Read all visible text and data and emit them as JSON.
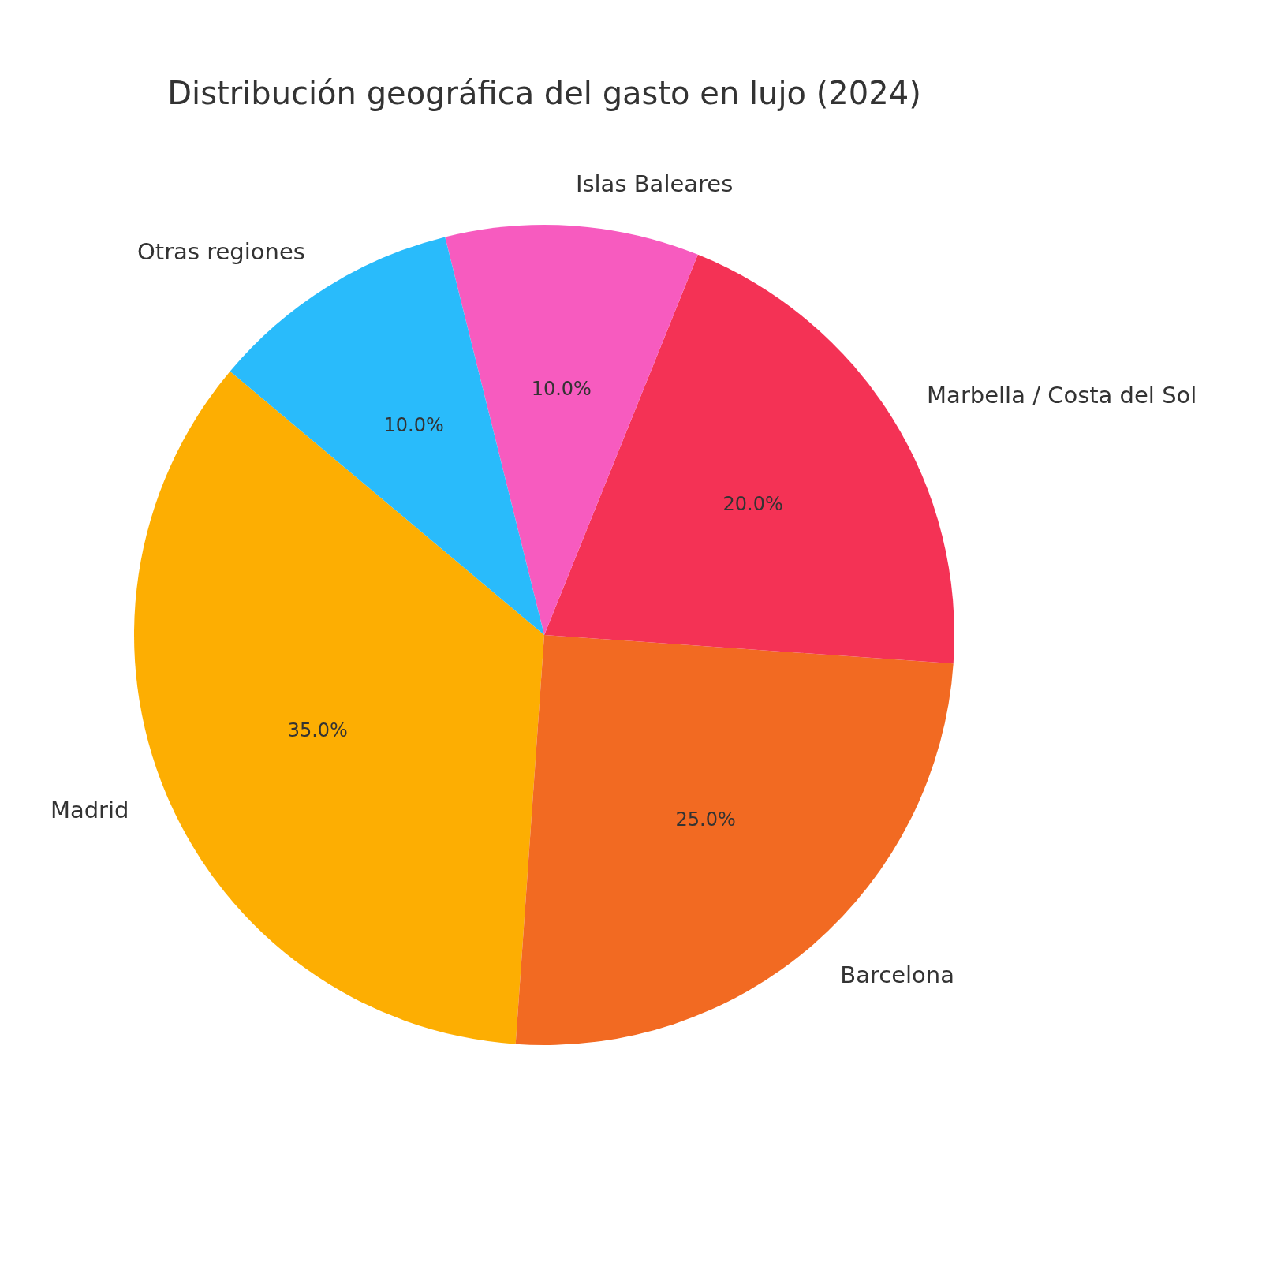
{
  "chart_data": {
    "type": "pie",
    "title": "Distribución geográfica del gasto en lujo (2024)",
    "categories": [
      "Madrid",
      "Barcelona",
      "Marbella / Costa del Sol",
      "Islas Baleares",
      "Otras regiones"
    ],
    "values": [
      35,
      25,
      20,
      10,
      10
    ],
    "colors": [
      "#fdae02",
      "#f26a22",
      "#f43255",
      "#f75bbf",
      "#29bbfb"
    ],
    "value_labels": [
      "35.0%",
      "25.0%",
      "20.0%",
      "10.0%",
      "10.0%"
    ],
    "legend": false
  }
}
